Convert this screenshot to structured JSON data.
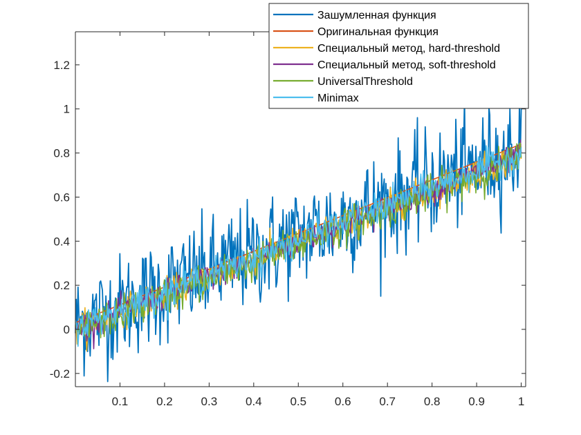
{
  "chart_data": {
    "type": "line",
    "title": "",
    "xlabel": "",
    "ylabel": "",
    "xlim": [
      0,
      1.01
    ],
    "ylim": [
      -0.26,
      1.35
    ],
    "xticks": [
      0.1,
      0.2,
      0.3,
      0.4,
      0.5,
      0.6,
      0.7,
      0.8,
      0.9,
      1
    ],
    "xtick_labels": [
      "0.1",
      "0.2",
      "0.3",
      "0.4",
      "0.5",
      "0.6",
      "0.7",
      "0.8",
      "0.9",
      "1"
    ],
    "yticks": [
      -0.2,
      0,
      0.2,
      0.4,
      0.6,
      0.8,
      1,
      1.2
    ],
    "ytick_labels": [
      "-0.2",
      "0",
      "0.2",
      "0.4",
      "0.6",
      "0.8",
      "1",
      "1.2"
    ],
    "grid": false,
    "legend_position": "top-right",
    "x": {
      "start": 0,
      "end": 1,
      "points": 512
    },
    "series": [
      {
        "name": "Зашумленная функция",
        "color": "#0072BD",
        "trend": [
          0.02,
          0.82
        ],
        "noise": 0.12
      },
      {
        "name": "Оригинальная функция",
        "color": "#D95319",
        "trend": [
          0.03,
          0.84
        ],
        "noise": 0.0
      },
      {
        "name": "Специальный метод, hard-threshold",
        "color": "#EDB120",
        "trend": [
          0.0,
          0.79
        ],
        "noise": 0.035
      },
      {
        "name": "Специальный метод, soft-threshold",
        "color": "#7E2F8E",
        "trend": [
          0.0,
          0.79
        ],
        "noise": 0.03
      },
      {
        "name": "UniversalThreshold",
        "color": "#77AC30",
        "trend": [
          -0.01,
          0.78
        ],
        "noise": 0.04
      },
      {
        "name": "Minimax",
        "color": "#4DBEEE",
        "trend": [
          0.01,
          0.8
        ],
        "noise": 0.035
      }
    ]
  }
}
